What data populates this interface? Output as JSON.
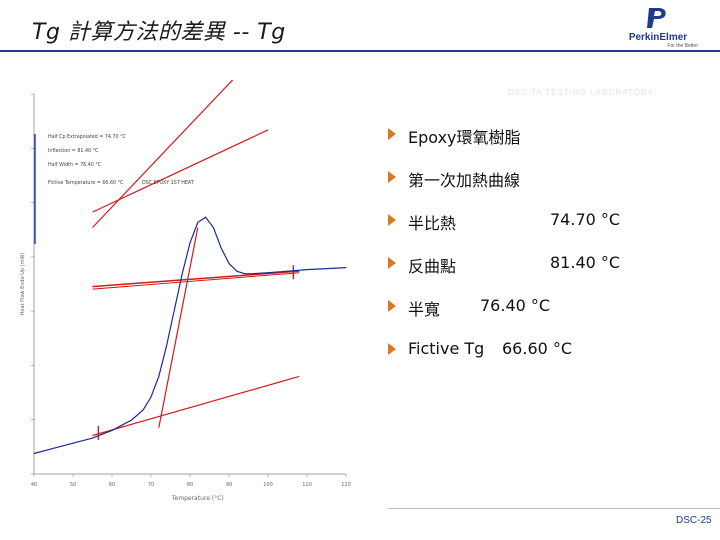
{
  "slide": {
    "title": "Tg 計算方法的差異 -- Tg",
    "number": "DSC-25"
  },
  "logo": {
    "name": "PerkinElmer",
    "tagline": "For the Better",
    "icon": "perkinelmer-logo-icon"
  },
  "faint_text": "DSC TA TESTING LABORATORY",
  "bullets": [
    {
      "label": "Epoxy環氧樹脂",
      "value": ""
    },
    {
      "label": "第一次加熱曲線",
      "value": ""
    },
    {
      "label": "半比熱",
      "value": "74.70 °C"
    },
    {
      "label": "反曲點",
      "value": "81.40 °C"
    },
    {
      "label": "半寬",
      "value": "76.40 °C"
    },
    {
      "label": "Fictive Tg",
      "value": "66.60 °C"
    }
  ],
  "colors": {
    "bullet_arrow": "#d97a1e",
    "title_rule": "#1e3a8a",
    "curve": "#1a2a9a",
    "tangent": "#d41a1a",
    "axis_blue": "#2a3aa8"
  },
  "chart_data": {
    "type": "line",
    "xlabel": "Temperature (°C)",
    "ylabel": "Heat Flow Endo Up (mW)",
    "xlim": [
      40,
      120
    ],
    "x_ticks": [
      "40",
      "50",
      "60",
      "70",
      "80",
      "90",
      "100",
      "110",
      "120"
    ],
    "annotations": [
      "Half Cp Extrapolated = 74.70 °C",
      "Inflection = 81.40 °C",
      "Half Width = 76.40 °C",
      "Fictive Temperature = 66.60 °C",
      "DSC EPOXY 1ST HEAT"
    ],
    "series": [
      {
        "role": "dsc-curve",
        "x": [
          40,
          45,
          50,
          55,
          60,
          65,
          68,
          70,
          72,
          74,
          76,
          78,
          80,
          82,
          84,
          86,
          88,
          90,
          92,
          94,
          96,
          100,
          105,
          110,
          115,
          120
        ],
        "y": [
          0.0,
          0.1,
          0.2,
          0.3,
          0.45,
          0.65,
          0.85,
          1.1,
          1.5,
          2.1,
          2.8,
          3.5,
          4.1,
          4.5,
          4.6,
          4.4,
          4.0,
          3.7,
          3.55,
          3.5,
          3.5,
          3.52,
          3.55,
          3.58,
          3.6,
          3.62
        ]
      }
    ]
  }
}
